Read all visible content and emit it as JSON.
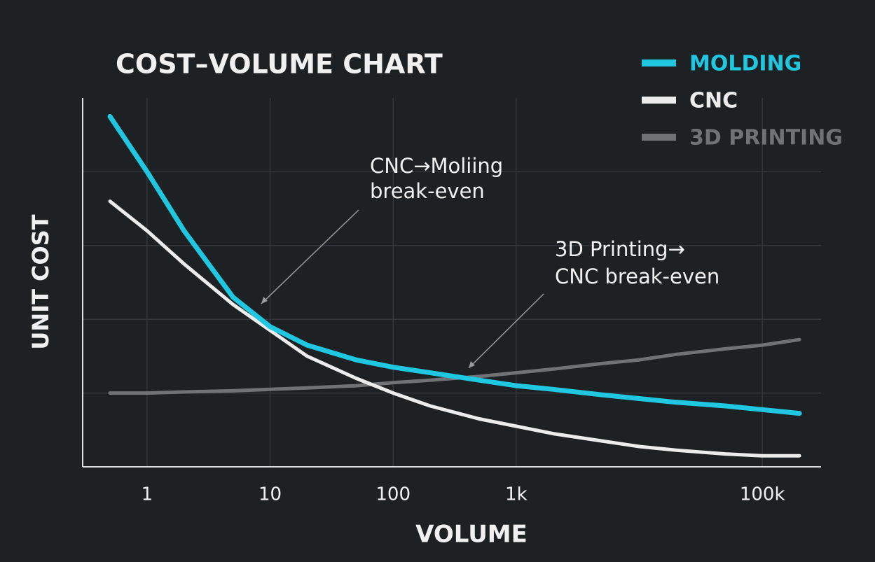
{
  "chart_data": {
    "type": "line",
    "title": "COST–VOLUME CHART",
    "x_label": "VOLUME",
    "y_label": "UNIT COST",
    "log_x": true,
    "x": [
      0.5,
      1,
      2,
      5,
      10,
      20,
      50,
      100,
      200,
      500,
      1000,
      2000,
      5000,
      10000,
      20000,
      50000,
      100000,
      200000
    ],
    "series": [
      {
        "name": "MOLDING",
        "color": "#1fc8e0",
        "width": 7,
        "values": [
          95,
          80,
          64,
          46,
          38,
          33,
          29,
          27,
          25.5,
          23.5,
          22,
          21,
          19.5,
          18.5,
          17.5,
          16.5,
          15.5,
          14.5
        ]
      },
      {
        "name": "CNC",
        "color": "#ececec",
        "width": 5,
        "values": [
          72,
          64,
          55,
          44,
          37,
          30,
          24,
          20,
          16.5,
          13,
          11,
          9,
          7,
          5.5,
          4.5,
          3.5,
          3,
          3
        ]
      },
      {
        "name": "3D PRINTING",
        "color": "#707376",
        "width": 5,
        "values": [
          20,
          20,
          20.3,
          20.6,
          21,
          21.4,
          22,
          22.8,
          23.5,
          24.5,
          25.5,
          26.5,
          28,
          29,
          30.5,
          32,
          33,
          34.5
        ]
      }
    ],
    "xlim": [
      0.3,
      300000
    ],
    "xticks": [
      1,
      10,
      100,
      {
        "value": 1000,
        "label": "1k"
      },
      {
        "value": 100000,
        "label": "100k"
      }
    ],
    "ylim": [
      0,
      100
    ],
    "yticks": [
      20,
      40,
      60,
      80
    ],
    "ytick_labels": false,
    "grid": true,
    "legend": "top-right",
    "annotations": [
      {
        "lines": [
          "CNC→Moliing",
          "break-even"
        ]
      },
      {
        "lines": [
          "3D Printing→",
          "CNC break-even"
        ]
      }
    ]
  }
}
